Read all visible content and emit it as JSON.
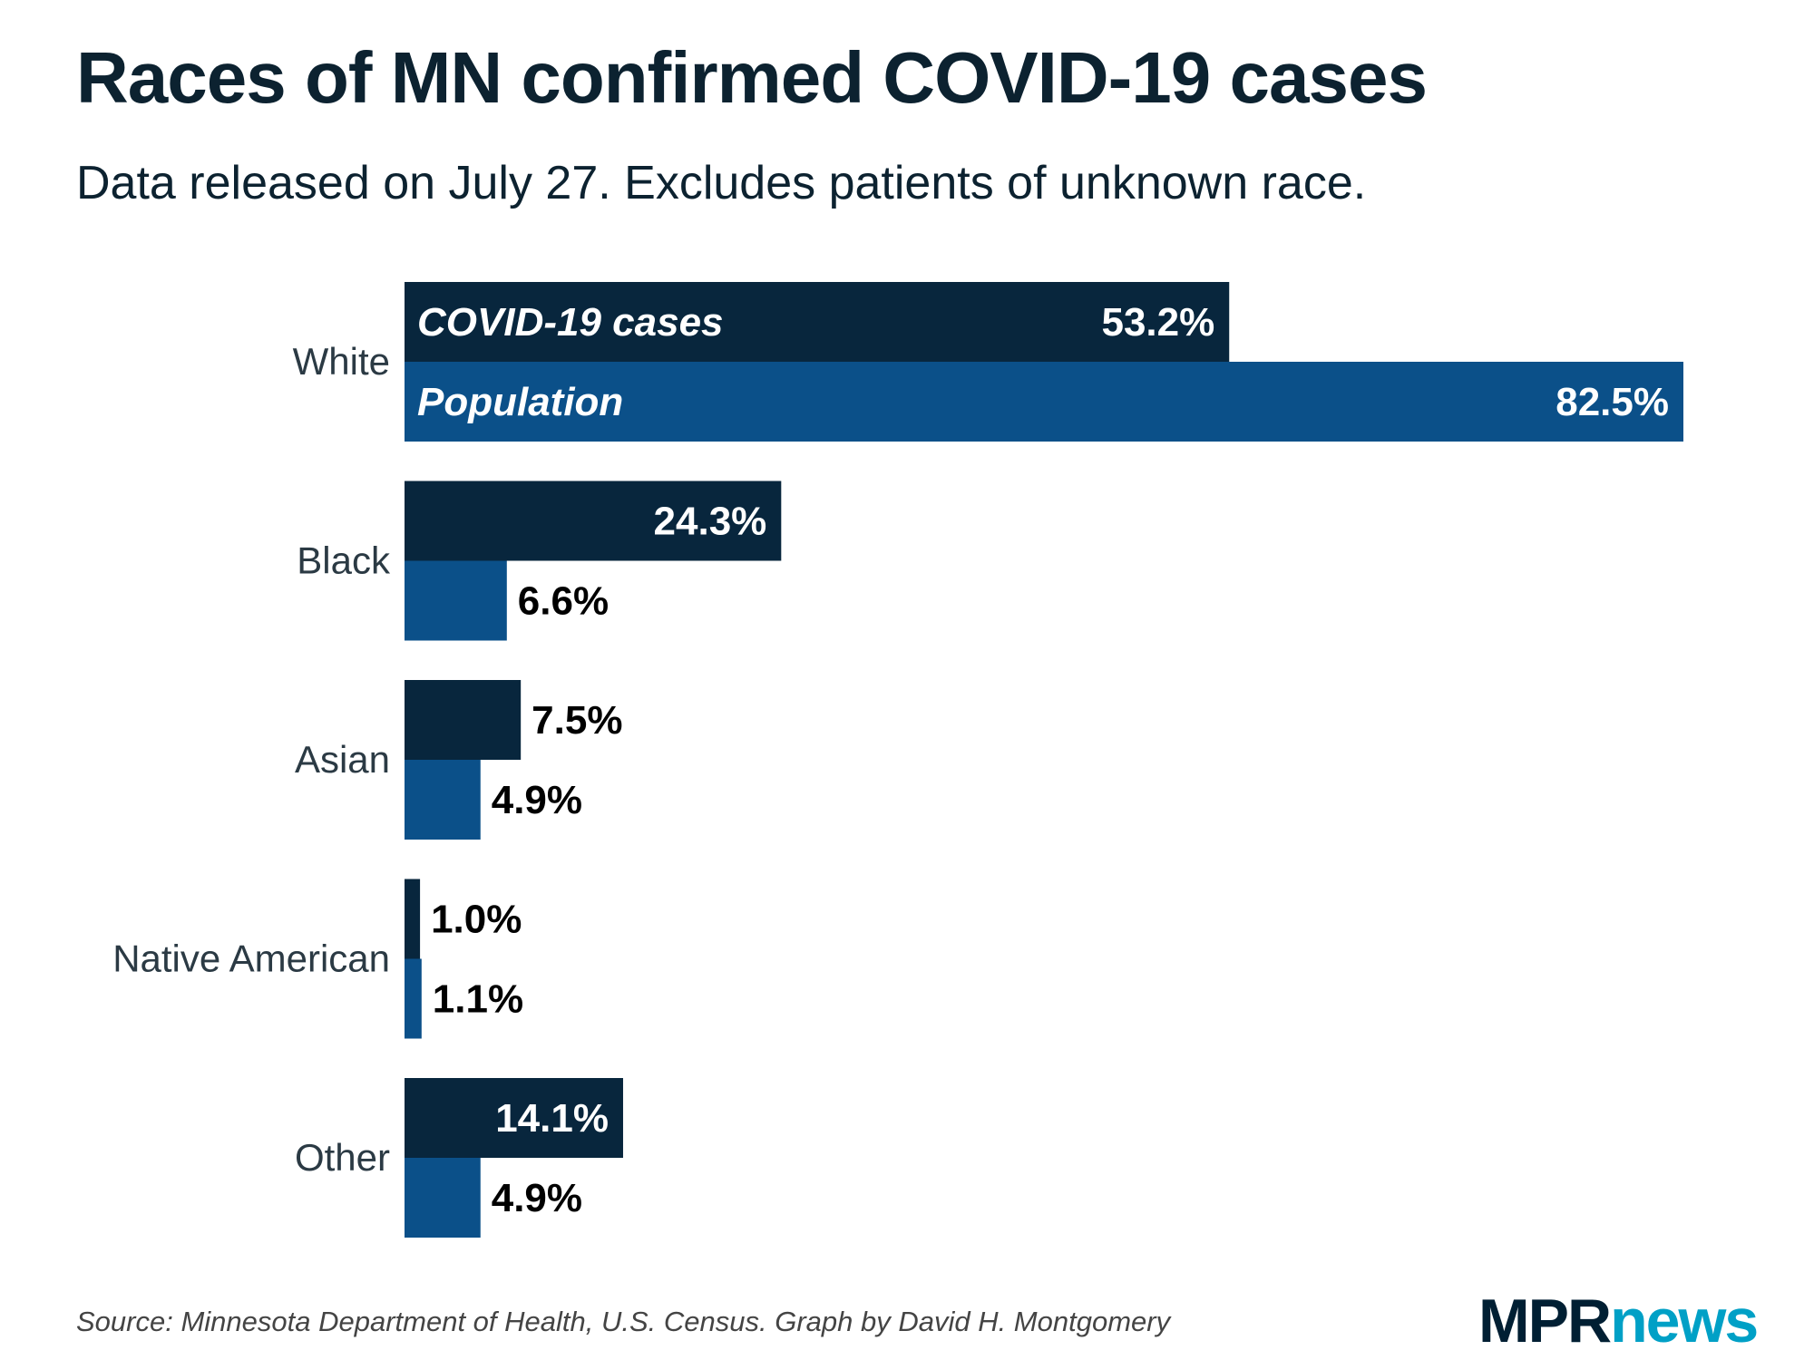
{
  "title": "Races of MN confirmed COVID-19 cases",
  "subtitle": "Data released on July 27. Excludes patients of unknown race.",
  "source": "Source: Minnesota Department of Health, U.S. Census. Graph by David H. Montgomery",
  "logo": {
    "mpr": "MPR",
    "news": "news"
  },
  "chart_data": {
    "type": "bar",
    "orientation": "horizontal",
    "categories": [
      "White",
      "Black",
      "Asian",
      "Native American",
      "Other"
    ],
    "series": [
      {
        "name": "COVID-19 cases",
        "values": [
          53.2,
          24.3,
          7.5,
          1.0,
          14.1
        ],
        "labels": [
          "53.2%",
          "24.3%",
          "7.5%",
          "1.0%",
          "14.1%"
        ],
        "color": "#08263d"
      },
      {
        "name": "Population",
        "values": [
          82.5,
          6.6,
          4.9,
          1.1,
          4.9
        ],
        "labels": [
          "82.5%",
          "6.6%",
          "4.9%",
          "1.1%",
          "4.9%"
        ],
        "color": "#0b5089"
      }
    ],
    "unit": "%",
    "xlim": [
      0,
      82.5
    ],
    "grid": false,
    "legend": "inline in first bars"
  }
}
